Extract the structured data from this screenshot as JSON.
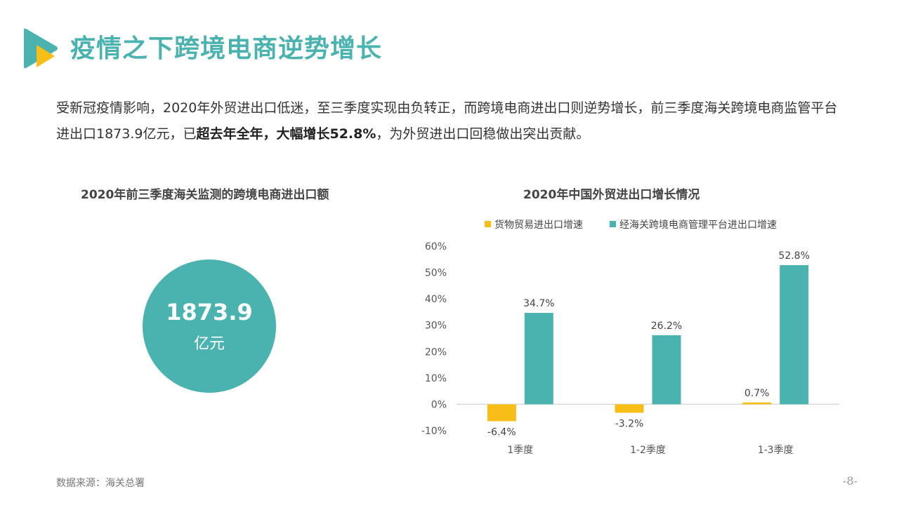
{
  "header": {
    "title": "疫情之下跨境电商逆势增长"
  },
  "intro": {
    "part1": "受新冠疫情影响，2020年外贸进出口低迷，至三季度实现由负转正，而跨境电商进出口则逆势增长，前三季度海关跨境电商监管平台进出口1873.9亿元，已",
    "bold": "超去年全年，大幅增长52.8%",
    "part2": "，为外贸进出口回稳做出突出贡献。"
  },
  "left_panel": {
    "title": "2020年前三季度海关监测的跨境电商进出口额",
    "value": "1873.9",
    "unit": "亿元"
  },
  "colors": {
    "accent": "#4ab3b0",
    "yellow": "#f6be16"
  },
  "chart_data": {
    "type": "bar",
    "title": "2020年中国外贸进出口增长情况",
    "categories": [
      "1季度",
      "1-2季度",
      "1-3季度"
    ],
    "series": [
      {
        "name": "货物贸易进出口增速",
        "values": [
          -6.4,
          -3.2,
          0.7
        ],
        "labels": [
          "-6.4%",
          "-3.2%",
          "0.7%"
        ],
        "color": "#f6be16"
      },
      {
        "name": "经海关跨境电商管理平台进出口增速",
        "values": [
          34.7,
          26.2,
          52.8
        ],
        "labels": [
          "34.7%",
          "26.2%",
          "52.8%"
        ],
        "color": "#4ab3b0"
      }
    ],
    "yticks": [
      "60%",
      "50%",
      "40%",
      "30%",
      "20%",
      "10%",
      "0%",
      "-10%"
    ],
    "ylim": [
      -10,
      60
    ],
    "legend": "top"
  },
  "footer": {
    "source": "数据来源：海关总署",
    "page": "-8-"
  }
}
